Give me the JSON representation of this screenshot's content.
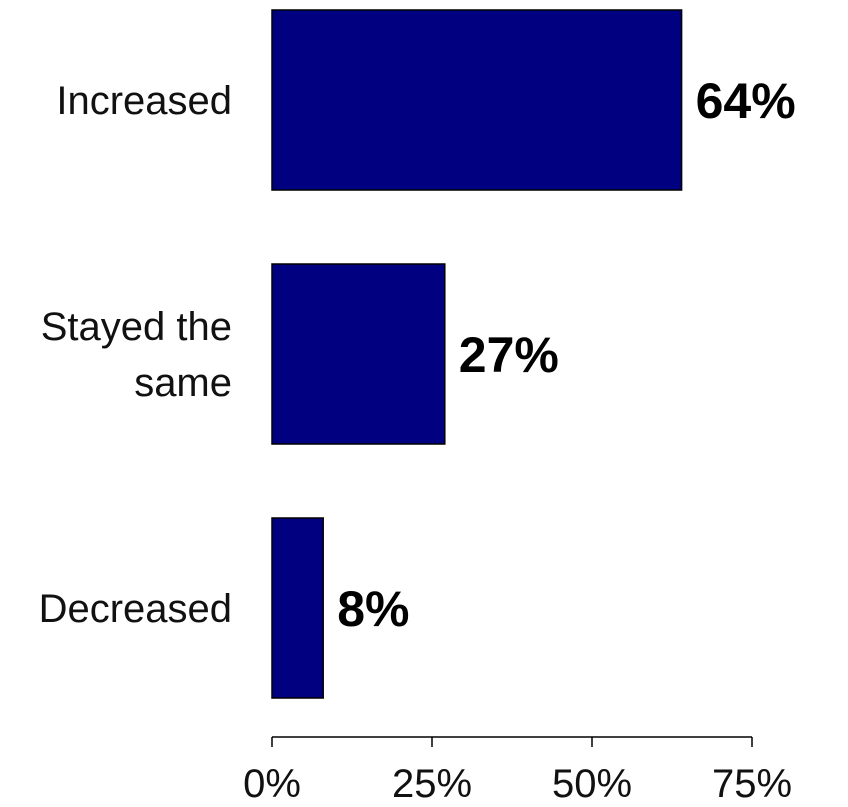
{
  "chart_data": {
    "type": "bar",
    "orientation": "horizontal",
    "title": "",
    "xlabel": "",
    "ylabel": "",
    "categories": [
      [
        "Increased"
      ],
      [
        "Stayed the",
        "same"
      ],
      [
        "Decreased"
      ]
    ],
    "values": [
      64,
      27,
      8
    ],
    "data_labels": [
      "64%",
      "27%",
      "8%"
    ],
    "xlim": [
      0,
      75
    ],
    "x_ticks": [
      0,
      25,
      50,
      75
    ],
    "x_tick_labels": [
      "0%",
      "25%",
      "50%",
      "75%"
    ],
    "grid": false,
    "legend": "none",
    "bar_color": "#000080"
  }
}
